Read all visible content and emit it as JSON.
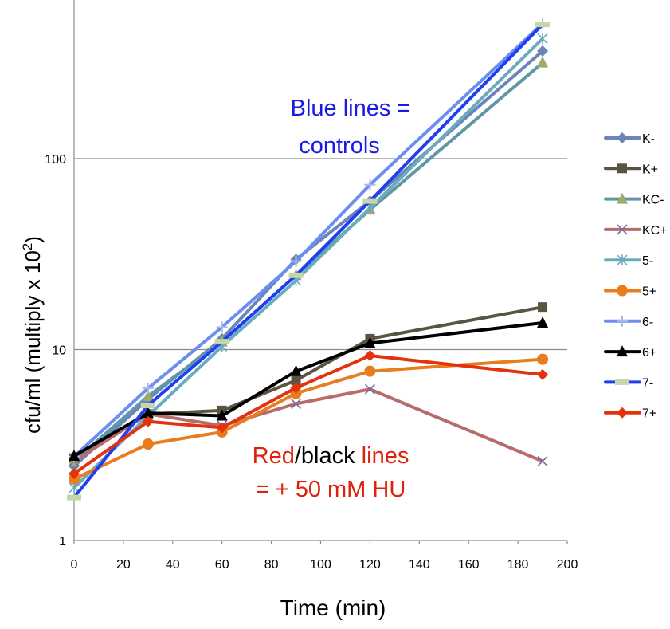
{
  "chart_data": {
    "type": "line",
    "title": "",
    "xlabel": "Time (min)",
    "ylabel": "cfu/ml (multiply x 10",
    "ylabel_superscript": "2",
    "ylabel_close": ")",
    "xlim": [
      0,
      200
    ],
    "ylim": [
      1,
      1000
    ],
    "yscale": "log",
    "grid": "horizontal",
    "legend_position": "right",
    "x_ticks": [
      "0",
      "20",
      "40",
      "60",
      "80",
      "100",
      "120",
      "140",
      "160",
      "180",
      "200"
    ],
    "y_ticks": [
      "1",
      "10",
      "100"
    ],
    "x": [
      0,
      30,
      60,
      90,
      120,
      190
    ],
    "series": [
      {
        "name": "K-",
        "values": [
          2.45,
          5.5,
          11.4,
          29.7,
          60,
          366
        ],
        "color": "#6a86b8",
        "marker": "diamond",
        "marker_color": "#6a86b8"
      },
      {
        "name": "K+",
        "values": [
          2.7,
          4.6,
          4.8,
          6.9,
          11.4,
          16.7
        ],
        "color": "#5a5540",
        "marker": "square",
        "marker_color": "#5a5540"
      },
      {
        "name": "KC-",
        "values": [
          2.6,
          5.7,
          11.0,
          24.5,
          54,
          318
        ],
        "color": "#5f97a8",
        "marker": "triangle",
        "marker_color": "#9cad6a"
      },
      {
        "name": "KC+",
        "values": [
          2.6,
          4.6,
          4.0,
          5.2,
          6.2,
          2.6
        ],
        "color": "#b86b6b",
        "marker": "x",
        "marker_color": "#7b6aa0"
      },
      {
        "name": "5-",
        "values": [
          1.89,
          4.5,
          10.4,
          23,
          55,
          425
        ],
        "color": "#6aabbf",
        "marker": "star",
        "marker_color": "#6aabbf"
      },
      {
        "name": "5+",
        "values": [
          2.1,
          3.2,
          3.7,
          5.9,
          7.7,
          8.9
        ],
        "color": "#e87d1e",
        "marker": "circle",
        "marker_color": "#e87d1e"
      },
      {
        "name": "6-",
        "values": [
          2.75,
          6.27,
          13.1,
          29,
          73,
          510
        ],
        "color": "#6b8ff0",
        "marker": "plus",
        "marker_color": "#a9b8e8"
      },
      {
        "name": "6+",
        "values": [
          2.77,
          4.65,
          4.5,
          7.7,
          10.8,
          13.8
        ],
        "color": "#000000",
        "marker": "triangle",
        "marker_color": "#000000"
      },
      {
        "name": "7-",
        "values": [
          1.68,
          5.1,
          11.0,
          24.5,
          60,
          505
        ],
        "color": "#1f3ff0",
        "marker": "bar",
        "marker_color": "#c5d6a8"
      },
      {
        "name": "7+",
        "values": [
          2.24,
          4.2,
          3.9,
          6.3,
          9.3,
          7.4
        ],
        "color": "#e2320e",
        "marker": "diamond",
        "marker_color": "#e2320e"
      }
    ],
    "annotations": {
      "blue_line1": "Blue lines =",
      "blue_line2": "controls",
      "red_word": "Red",
      "black_word": "/black",
      "red_lines_word": " lines",
      "red_line2": "= + 50 mM HU"
    },
    "colors": {
      "blue_note": "#1a1ae8",
      "red_note": "#e0200a",
      "grid": "#8c8c8c"
    }
  }
}
